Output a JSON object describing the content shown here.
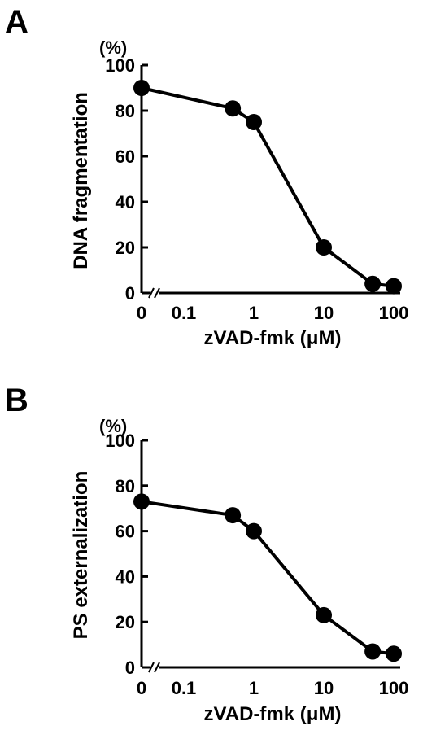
{
  "chart_data": [
    {
      "panel": "A",
      "type": "line",
      "unit_label": "(%)",
      "xlabel": "zVAD-fmk (μM)",
      "ylabel": "DNA fragmentation",
      "x_scale": "log with break at 0",
      "x_ticks": [
        "0",
        "0.1",
        "1",
        "10",
        "100"
      ],
      "y_ticks": [
        "0",
        "20",
        "40",
        "60",
        "80",
        "100"
      ],
      "ylim": [
        0,
        100
      ],
      "grid": false,
      "series": [
        {
          "x": [
            0,
            0.5,
            1,
            10,
            50,
            100
          ],
          "y": [
            90,
            81,
            75,
            20,
            4,
            3
          ]
        }
      ]
    },
    {
      "panel": "B",
      "type": "line",
      "unit_label": "(%)",
      "xlabel": "zVAD-fmk (μM)",
      "ylabel": "PS externalization",
      "x_scale": "log with break at 0",
      "x_ticks": [
        "0",
        "0.1",
        "1",
        "10",
        "100"
      ],
      "y_ticks": [
        "0",
        "20",
        "40",
        "60",
        "80",
        "100"
      ],
      "ylim": [
        0,
        100
      ],
      "grid": false,
      "series": [
        {
          "x": [
            0,
            0.5,
            1,
            10,
            50,
            100
          ],
          "y": [
            73,
            67,
            60,
            23,
            7,
            6
          ]
        }
      ]
    }
  ]
}
